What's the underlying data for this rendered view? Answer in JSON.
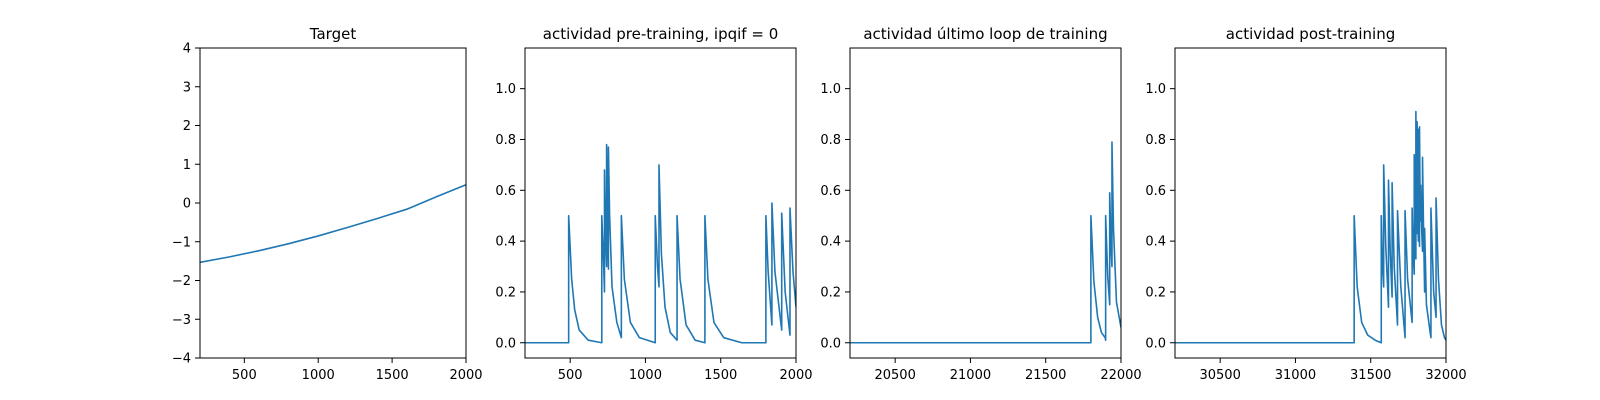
{
  "chart_data": [
    {
      "type": "line",
      "title": "Target",
      "xlim": [
        200,
        2000
      ],
      "ylim": [
        -4,
        4
      ],
      "xticks": [
        500,
        1000,
        1500,
        2000
      ],
      "yticks": [
        -4,
        -3,
        -2,
        -1,
        0,
        1,
        2,
        3,
        4
      ],
      "series": [
        {
          "color": "#1f77b4",
          "x": [
            200,
            400,
            600,
            800,
            1000,
            1200,
            1400,
            1600,
            1800,
            2000
          ],
          "y": [
            -1.53,
            -1.39,
            -1.23,
            -1.05,
            -0.85,
            -0.63,
            -0.4,
            -0.16,
            0.16,
            0.47
          ]
        }
      ]
    },
    {
      "type": "line",
      "title": "actividad pre-training, ipqif = 0",
      "xlim": [
        200,
        2000
      ],
      "ylim": [
        -0.06,
        1.16
      ],
      "xticks": [
        500,
        1000,
        1500,
        2000
      ],
      "yticks": [
        0.0,
        0.2,
        0.4,
        0.6,
        0.8,
        1.0
      ],
      "series": [
        {
          "color": "#1f77b4",
          "x": [
            200,
            490,
            490,
            510,
            530,
            560,
            620,
            710,
            710,
            720,
            728,
            728,
            736,
            742,
            742,
            748,
            754,
            754,
            762,
            778,
            810,
            840,
            840,
            860,
            900,
            960,
            1065,
            1065,
            1080,
            1090,
            1090,
            1106,
            1130,
            1165,
            1210,
            1210,
            1230,
            1270,
            1330,
            1395,
            1395,
            1415,
            1455,
            1520,
            1640,
            1800,
            1800,
            1815,
            1840,
            1840,
            1860,
            1905,
            1905,
            1928,
            1960,
            1960,
            1980,
            2000
          ],
          "y": [
            0.0,
            0.0,
            0.5,
            0.25,
            0.13,
            0.05,
            0.01,
            0.0,
            0.5,
            0.35,
            0.2,
            0.68,
            0.4,
            0.3,
            0.78,
            0.5,
            0.29,
            0.77,
            0.5,
            0.22,
            0.08,
            0.02,
            0.5,
            0.25,
            0.08,
            0.02,
            0.0,
            0.5,
            0.3,
            0.22,
            0.7,
            0.35,
            0.14,
            0.04,
            0.01,
            0.5,
            0.25,
            0.07,
            0.01,
            0.0,
            0.5,
            0.25,
            0.08,
            0.02,
            0.0,
            0.0,
            0.5,
            0.28,
            0.07,
            0.55,
            0.28,
            0.05,
            0.51,
            0.2,
            0.03,
            0.53,
            0.28,
            0.14
          ]
        }
      ]
    },
    {
      "type": "line",
      "title": "actividad último loop de training",
      "xlim": [
        20200,
        22000
      ],
      "ylim": [
        -0.06,
        1.16
      ],
      "xticks": [
        20500,
        21000,
        21500,
        22000
      ],
      "yticks": [
        0.0,
        0.2,
        0.4,
        0.6,
        0.8,
        1.0
      ],
      "series": [
        {
          "color": "#1f77b4",
          "x": [
            20200,
            21800,
            21800,
            21820,
            21845,
            21870,
            21895,
            21898,
            21898,
            21912,
            21925,
            21925,
            21934,
            21940,
            21940,
            21950,
            21970,
            22000
          ],
          "y": [
            0.0,
            0.0,
            0.5,
            0.24,
            0.1,
            0.04,
            0.02,
            0.01,
            0.5,
            0.26,
            0.15,
            0.59,
            0.37,
            0.3,
            0.79,
            0.45,
            0.16,
            0.06
          ]
        }
      ]
    },
    {
      "type": "line",
      "title": "actividad post-training",
      "xlim": [
        30200,
        32000
      ],
      "ylim": [
        -0.06,
        1.16
      ],
      "xticks": [
        30500,
        31000,
        31500,
        32000
      ],
      "yticks": [
        0.0,
        0.2,
        0.4,
        0.6,
        0.8,
        1.0
      ],
      "series": [
        {
          "color": "#1f77b4",
          "x": [
            30200,
            31390,
            31390,
            31410,
            31440,
            31480,
            31530,
            31570,
            31570,
            31578,
            31586,
            31586,
            31600,
            31618,
            31618,
            31630,
            31642,
            31642,
            31656,
            31678,
            31678,
            31700,
            31728,
            31728,
            31745,
            31775,
            31775,
            31782,
            31789,
            31789,
            31796,
            31800,
            31800,
            31804,
            31808,
            31808,
            31812,
            31816,
            31816,
            31820,
            31824,
            31824,
            31828,
            31832,
            31832,
            31838,
            31844,
            31844,
            31850,
            31858,
            31858,
            31870,
            31895,
            31900,
            31900,
            31918,
            31934,
            31934,
            31950,
            31970,
            31990,
            32000
          ],
          "y": [
            0.0,
            0.0,
            0.5,
            0.22,
            0.08,
            0.03,
            0.01,
            0.0,
            0.5,
            0.3,
            0.22,
            0.7,
            0.38,
            0.14,
            0.64,
            0.35,
            0.18,
            0.63,
            0.3,
            0.07,
            0.52,
            0.22,
            0.02,
            0.52,
            0.25,
            0.08,
            0.53,
            0.35,
            0.27,
            0.74,
            0.45,
            0.33,
            0.91,
            0.58,
            0.43,
            0.87,
            0.55,
            0.4,
            0.84,
            0.52,
            0.38,
            0.85,
            0.55,
            0.48,
            0.62,
            0.45,
            0.36,
            0.73,
            0.48,
            0.2,
            0.45,
            0.15,
            0.04,
            0.02,
            0.53,
            0.2,
            0.1,
            0.57,
            0.25,
            0.07,
            0.02,
            0.01
          ]
        }
      ]
    }
  ]
}
